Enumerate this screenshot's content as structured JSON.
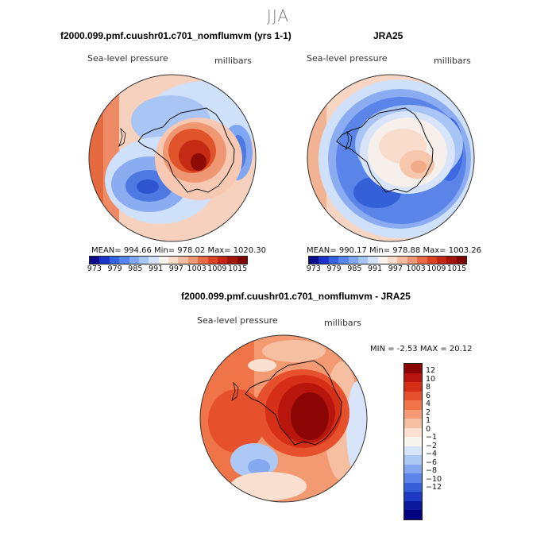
{
  "season": "JJA",
  "panels": [
    {
      "title": "f2000.099.pmf.cuushr01.c701_nomflumvm (yrs 1-1)",
      "variable": "Sea-level pressure",
      "units": "millibars",
      "stats": "MEAN= 994.66   Min= 978.02   Max= 1020.30"
    },
    {
      "title": "JRA25",
      "variable": "Sea-level pressure",
      "units": "millibars",
      "stats": "MEAN= 990.17   Min= 978.88   Max= 1003.26"
    },
    {
      "title": "f2000.099.pmf.cuushr01.c701_nomflumvm - JRA25",
      "variable": "Sea-level pressure",
      "units": "millibars",
      "stats": "MIN =  -2.53 MAX =  20.12"
    }
  ],
  "colorbar_main": {
    "ticks": [
      "973",
      "979",
      "985",
      "991",
      "997",
      "1003",
      "1009",
      "1015"
    ],
    "colors": [
      "#0b0b8c",
      "#1c32c8",
      "#3162e0",
      "#5585ee",
      "#7ea6f2",
      "#a8c5f7",
      "#d3e1fb",
      "#f7f4ef",
      "#f8dccc",
      "#f4bba0",
      "#ef9673",
      "#e86b45",
      "#db4322",
      "#c42612",
      "#a5140a",
      "#7e0505"
    ]
  },
  "colorbar_diff": {
    "ticks": [
      "12",
      "10",
      "8",
      "6",
      "4",
      "2",
      "1",
      "0",
      "−1",
      "−2",
      "−4",
      "−6",
      "−8",
      "−10",
      "−12"
    ],
    "colors": [
      "#8b0505",
      "#b8160c",
      "#d62f18",
      "#e6502c",
      "#ef7448",
      "#f49a72",
      "#f7bfa2",
      "#f9e0d0",
      "#f7f4ef",
      "#d7e4fa",
      "#aec8f5",
      "#84a9f0",
      "#5a84e8",
      "#3460d8",
      "#1c3ac2",
      "#0b1a9a",
      "#000080"
    ]
  },
  "colors": {
    "land_outline": "#111111",
    "ocean_low": "#3d6ae0",
    "ocean_mid": "#cfe0fa",
    "high": "#c83214"
  }
}
